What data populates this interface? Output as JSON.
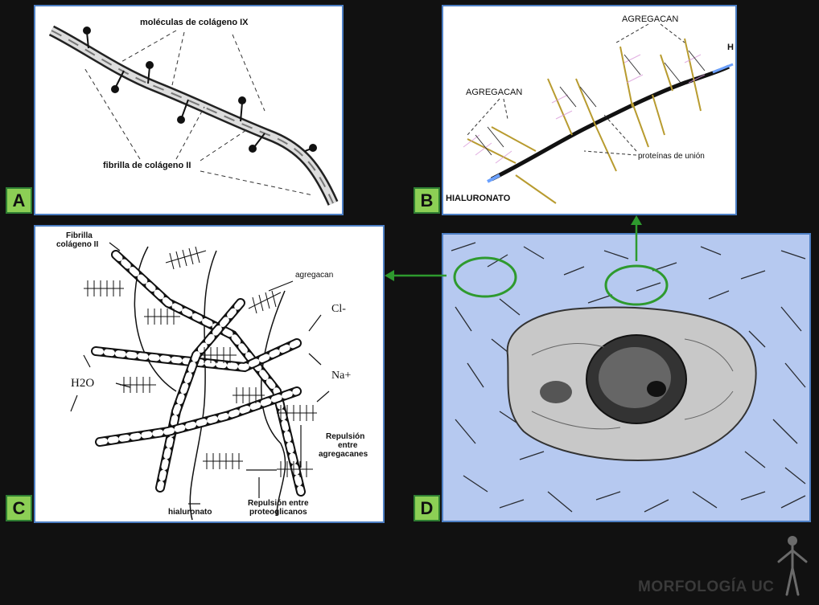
{
  "panels": {
    "a": {
      "tag": "A",
      "label_molecules": "moléculas de colágeno IX",
      "label_fibril": "fibrilla de colágeno II"
    },
    "b": {
      "tag": "B",
      "label_aggrecan_top": "AGREGACAN",
      "label_aggrecan_left": "AGREGACAN",
      "label_link_proteins": "proteínas de unión",
      "label_hyaluronate": "HIALURONATO",
      "label_h": "H"
    },
    "c": {
      "tag": "C",
      "label_fibril_line1": "Fibrilla",
      "label_fibril_line2": "colágeno II",
      "label_aggrecan": "agregacan",
      "label_cl": "Cl-",
      "label_na": "Na+",
      "label_water": "H2O",
      "label_repulsion_aggrecans_1": "Repulsión",
      "label_repulsion_aggrecans_2": "entre",
      "label_repulsion_aggrecans_3": "agregacanes",
      "label_hyaluronate": "hialuronato",
      "label_repulsion_proteoglycans_1": "Repulsión entre",
      "label_repulsion_proteoglycans_2": "proteoglicanos"
    },
    "d": {
      "tag": "D"
    }
  },
  "branding": {
    "text": "MORFOLOGÍA UC"
  },
  "colors": {
    "background": "#111111",
    "panel_border": "#4d7fc4",
    "tag_fill": "#8ccf55",
    "arrow_green": "#2e9a2e",
    "matrix_blue": "#b6c9f0",
    "cell_gray": "#c8c8c8"
  }
}
